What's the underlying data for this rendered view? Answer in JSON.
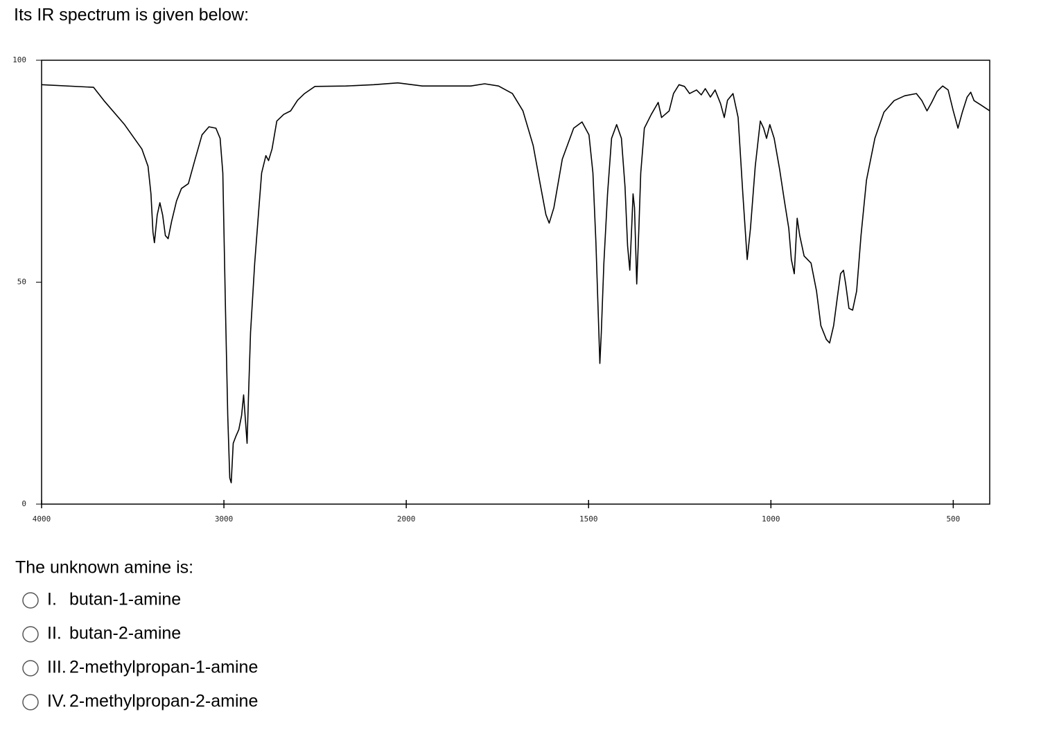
{
  "intro": "Its IR spectrum is given below:",
  "chart_data": {
    "type": "line",
    "xlim": [
      4000,
      400
    ],
    "xbreak": 2000,
    "xbreak_zoom": 2,
    "xticks": [
      4000,
      3000,
      2000,
      1500,
      1000,
      500
    ],
    "ylim": [
      0,
      100
    ],
    "yticks": [
      0,
      50,
      100
    ],
    "series": [
      {
        "color": "#000000",
        "x": [
          4000,
          3715,
          3658,
          3545,
          3450,
          3416,
          3400,
          3389,
          3381,
          3366,
          3351,
          3336,
          3321,
          3306,
          3287,
          3260,
          3233,
          3195,
          3158,
          3120,
          3082,
          3044,
          3021,
          3006,
          2991,
          2979,
          2968,
          2960,
          2949,
          2934,
          2918,
          2903,
          2892,
          2884,
          2873,
          2865,
          2854,
          2831,
          2808,
          2793,
          2770,
          2755,
          2736,
          2710,
          2672,
          2634,
          2596,
          2558,
          2501,
          2330,
          2178,
          2046,
          1956,
          1823,
          1785,
          1747,
          1709,
          1680,
          1652,
          1633,
          1617,
          1608,
          1595,
          1572,
          1541,
          1518,
          1499,
          1488,
          1480,
          1473,
          1469,
          1465,
          1458,
          1448,
          1437,
          1423,
          1410,
          1400,
          1393,
          1387,
          1381,
          1378,
          1374,
          1368,
          1362,
          1357,
          1347,
          1328,
          1309,
          1300,
          1290,
          1279,
          1267,
          1252,
          1237,
          1223,
          1204,
          1191,
          1180,
          1166,
          1153,
          1138,
          1128,
          1119,
          1104,
          1090,
          1077,
          1065,
          1056,
          1043,
          1029,
          1020,
          1012,
          1003,
          991,
          976,
          963,
          951,
          944,
          936,
          928,
          921,
          909,
          890,
          875,
          863,
          848,
          839,
          828,
          818,
          809,
          801,
          795,
          786,
          776,
          765,
          753,
          738,
          715,
          690,
          662,
          633,
          601,
          586,
          572,
          559,
          544,
          529,
          514,
          500,
          487,
          475,
          462,
          452,
          443,
          424,
          400
        ],
        "values": [
          94.5,
          93.9,
          90.9,
          85.5,
          80.0,
          76.1,
          69.9,
          61.3,
          58.9,
          65.1,
          67.9,
          65.1,
          60.5,
          59.8,
          63.7,
          68.3,
          71.1,
          72.2,
          77.7,
          83.2,
          85.0,
          84.7,
          82.4,
          74.6,
          43.4,
          20.0,
          5.9,
          4.8,
          13.7,
          15.3,
          16.8,
          20.0,
          24.6,
          20.0,
          13.7,
          24.6,
          38.7,
          54.3,
          66.8,
          74.6,
          78.5,
          77.4,
          80.0,
          86.3,
          87.8,
          88.6,
          91.0,
          92.5,
          94.1,
          94.2,
          94.5,
          94.9,
          94.2,
          94.2,
          94.7,
          94.2,
          92.5,
          88.6,
          80.8,
          72.2,
          65.2,
          63.3,
          66.8,
          77.7,
          84.7,
          86.1,
          83.2,
          74.6,
          59.0,
          41.8,
          31.7,
          38.7,
          54.3,
          69.9,
          82.4,
          85.5,
          82.4,
          71.5,
          58.2,
          52.7,
          63.7,
          69.9,
          66.8,
          49.6,
          62.1,
          74.6,
          84.7,
          87.8,
          90.5,
          87.1,
          87.8,
          88.6,
          92.5,
          94.5,
          94.1,
          92.5,
          93.3,
          92.2,
          93.6,
          91.7,
          93.3,
          90.2,
          87.1,
          91.0,
          92.5,
          87.1,
          69.9,
          55.1,
          62.1,
          76.1,
          86.3,
          84.7,
          82.4,
          85.5,
          82.4,
          75.4,
          68.3,
          62.1,
          55.1,
          51.9,
          64.4,
          60.5,
          55.9,
          54.3,
          48.0,
          40.2,
          37.1,
          36.3,
          40.2,
          46.5,
          51.9,
          52.7,
          49.6,
          44.1,
          43.7,
          48.0,
          60.5,
          73.0,
          82.4,
          88.3,
          90.9,
          92.0,
          92.5,
          90.9,
          88.6,
          90.5,
          93.0,
          94.2,
          93.3,
          88.6,
          84.7,
          88.3,
          91.7,
          92.8,
          90.9,
          89.9,
          88.6
        ]
      }
    ]
  },
  "question": "The unknown amine is:",
  "options": [
    {
      "number": "I.",
      "text": "butan-1-amine"
    },
    {
      "number": "II.",
      "text": "butan-2-amine"
    },
    {
      "number": "III.",
      "text": "2-methylpropan-1-amine"
    },
    {
      "number": "IV.",
      "text": "2-methylpropan-2-amine"
    }
  ]
}
